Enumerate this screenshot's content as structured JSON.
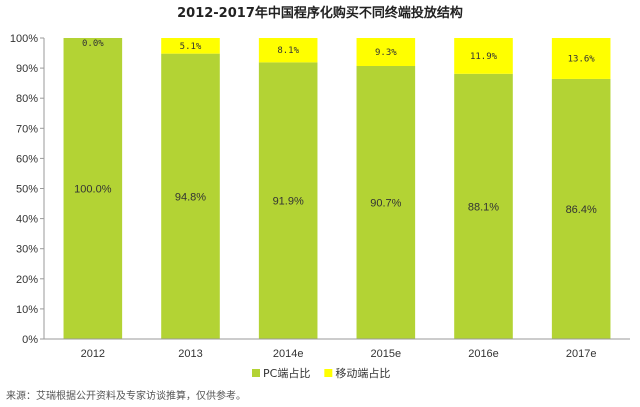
{
  "chart_data": {
    "type": "bar",
    "stacked": true,
    "title": "2012-2017年中国程序化购买不同终端投放结构",
    "categories": [
      "2012",
      "2013",
      "2014e",
      "2015e",
      "2016e",
      "2017e"
    ],
    "series": [
      {
        "name": "PC端占比",
        "color": "#b3d334",
        "values": [
          100.0,
          94.8,
          91.9,
          90.7,
          88.1,
          86.4
        ],
        "labels": [
          "100.0%",
          "94.8%",
          "91.9%",
          "90.7%",
          "88.1%",
          "86.4%"
        ]
      },
      {
        "name": "移动端占比",
        "color": "#ffff00",
        "values": [
          0.0,
          5.1,
          8.1,
          9.3,
          11.9,
          13.6
        ],
        "labels": [
          "0.0%",
          "5.1%",
          "8.1%",
          "9.3%",
          "11.9%",
          "13.6%"
        ]
      }
    ],
    "ylim": [
      0,
      100
    ],
    "yticks": [
      "0%",
      "10%",
      "20%",
      "30%",
      "40%",
      "50%",
      "60%",
      "70%",
      "80%",
      "90%",
      "100%"
    ],
    "grid": false,
    "legend": "bottom-center"
  },
  "source": "来源：艾瑞根据公开资料及专家访谈推算，仅供参考。"
}
